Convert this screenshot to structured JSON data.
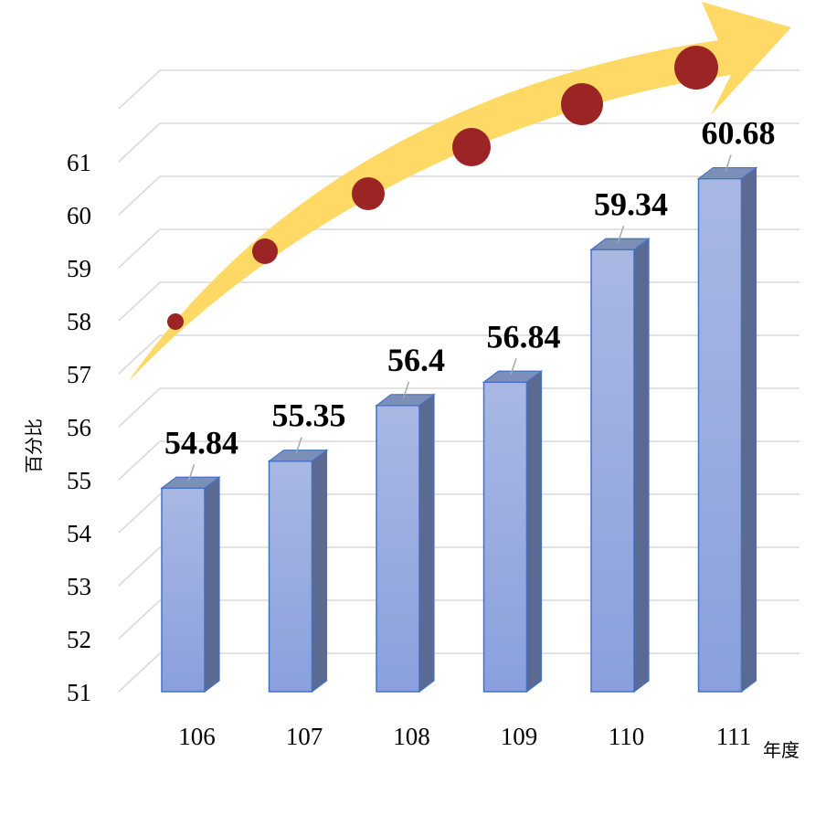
{
  "chart_data": {
    "type": "bar",
    "categories": [
      "106",
      "107",
      "108",
      "109",
      "110",
      "111"
    ],
    "values": [
      54.84,
      55.35,
      56.4,
      56.84,
      59.34,
      60.68
    ],
    "data_labels": [
      "54.84",
      "55.35",
      "56.4",
      "56.84",
      "59.34",
      "60.68"
    ],
    "y_ticks": [
      "51",
      "52",
      "53",
      "54",
      "55",
      "56",
      "57",
      "58",
      "59",
      "60",
      "61"
    ],
    "xlabel": "年度",
    "ylabel": "百分比",
    "ylim": [
      51,
      61
    ],
    "grid": true,
    "legend": "none",
    "style": "3d-column",
    "decoration": "upward-trend-arrow",
    "colors": {
      "bar_front": "#8fa6dc",
      "bar_side": "#5b6a92",
      "bar_top": "#7c8fb9",
      "arrow": "#ffd966",
      "dots": "#9b2424",
      "grid": "#d9d9d9"
    }
  }
}
